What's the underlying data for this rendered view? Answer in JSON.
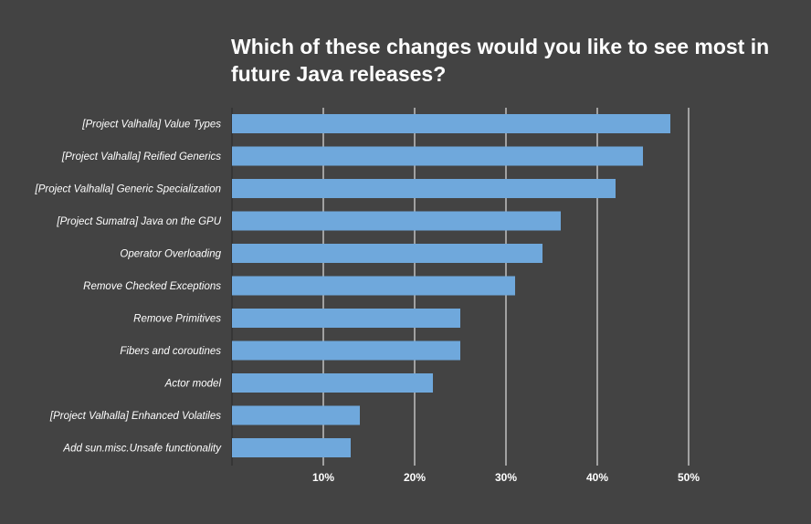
{
  "chart_data": {
    "type": "bar",
    "orientation": "horizontal",
    "title": "Which of these changes would you like to see most in future Java releases?",
    "categories": [
      "[Project Valhalla] Value Types",
      "[Project Valhalla] Reified Generics",
      "[Project Valhalla] Generic Specialization",
      "[Project Sumatra] Java on the GPU",
      "Operator Overloading",
      "Remove Checked Exceptions",
      "Remove Primitives",
      "Fibers and coroutines",
      "Actor model",
      "[Project Valhalla] Enhanced Volatiles",
      "Add sun.misc.Unsafe functionality"
    ],
    "values": [
      48,
      45,
      42,
      36,
      34,
      31,
      25,
      25,
      22,
      14,
      13
    ],
    "xlim": [
      0,
      52
    ],
    "xticks": [
      10,
      20,
      30,
      40,
      50
    ],
    "xtick_labels": [
      "10%",
      "20%",
      "30%",
      "40%",
      "50%"
    ],
    "grid": true,
    "colors": {
      "background": "#434343",
      "bar": "#6fa8dc",
      "grid": "#ffffff",
      "text": "#ffffff"
    }
  }
}
